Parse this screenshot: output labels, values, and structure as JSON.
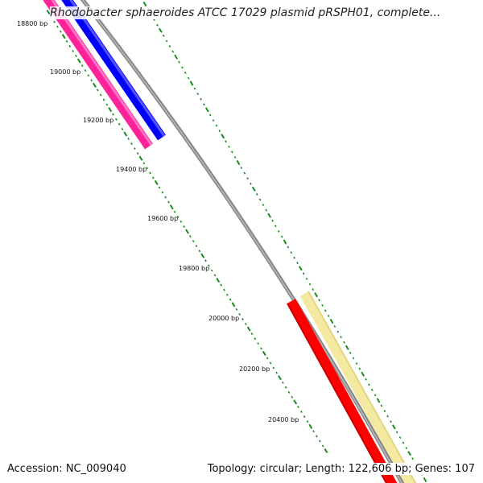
{
  "header": {
    "title": "Rhodobacter sphaeroides ATCC 17029 plasmid pRSPH01, complete..."
  },
  "footer": {
    "accession": "Accession: NC_009040",
    "summary": "Topology: circular; Length: 122,606 bp; Genes: 107"
  },
  "ruler": {
    "tick_labels": [
      "18800 bp",
      "19000 bp",
      "19200 bp",
      "19400 bp",
      "19600 bp",
      "19800 bp",
      "20000 bp",
      "20200 bp",
      "20400 bp"
    ]
  },
  "features": [
    {
      "name": "forward-feature-magenta",
      "color": "#ff2299"
    },
    {
      "name": "forward-feature-blue",
      "color": "#0000ff"
    },
    {
      "name": "reverse-feature-red",
      "color": "#ff0000"
    },
    {
      "name": "reverse-feature-pale-yellow",
      "color": "#f3e9a0"
    }
  ],
  "colors": {
    "backbone": "#888888",
    "tick_marks": "#1a8a1a"
  }
}
